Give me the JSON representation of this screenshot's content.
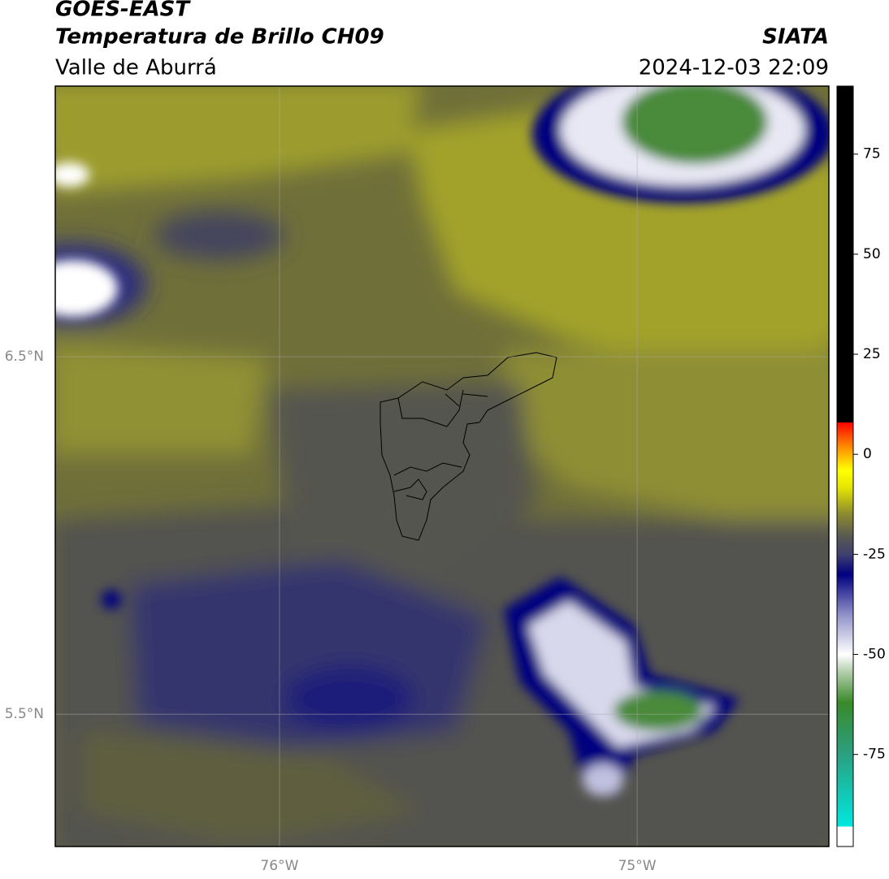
{
  "header": {
    "title": "GOES-EAST",
    "subtitle": "Temperatura de Brillo CH09",
    "region": "Valle de Aburrá",
    "source": "SIATA",
    "datetime": "2024-12-03 22:09"
  },
  "map": {
    "lat_range": [
      5.13,
      7.257
    ],
    "lon_range": [
      -76.627,
      -74.464
    ],
    "lat_ticks": [
      {
        "value": 6.5,
        "label": "6.5°N"
      },
      {
        "value": 5.5,
        "label": "5.5°N"
      }
    ],
    "lon_ticks": [
      {
        "value": -76,
        "label": "76°W"
      },
      {
        "value": -75,
        "label": "75°W"
      }
    ],
    "grid": true
  },
  "colorbar": {
    "range": [
      -98,
      92
    ],
    "ticks": [
      75,
      50,
      25,
      0,
      -25,
      -50,
      -75
    ],
    "stops": [
      {
        "value": -98,
        "color": "#ffffff"
      },
      {
        "value": -93,
        "color": "#ffffff"
      },
      {
        "value": -93,
        "color": "#00e8e0"
      },
      {
        "value": -75,
        "color": "#2aa080"
      },
      {
        "value": -62,
        "color": "#3a8a2a"
      },
      {
        "value": -55,
        "color": "#a8c8a0"
      },
      {
        "value": -50,
        "color": "#ffffff"
      },
      {
        "value": -40,
        "color": "#9090c8"
      },
      {
        "value": -30,
        "color": "#000080"
      },
      {
        "value": -25,
        "color": "#404070"
      },
      {
        "value": -21,
        "color": "#555555"
      },
      {
        "value": -15,
        "color": "#8a8a30"
      },
      {
        "value": -8,
        "color": "#e8e800"
      },
      {
        "value": -4,
        "color": "#ffff00"
      },
      {
        "value": 2,
        "color": "#ff8800"
      },
      {
        "value": 8,
        "color": "#ff0000"
      },
      {
        "value": 8,
        "color": "#000000"
      },
      {
        "value": 92,
        "color": "#000000"
      }
    ]
  }
}
